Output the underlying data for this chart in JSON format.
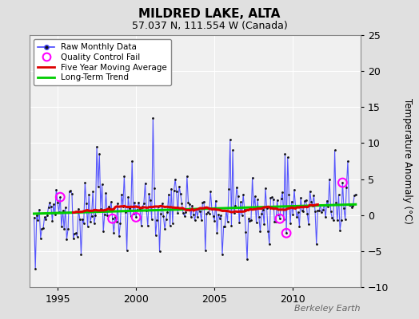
{
  "title": "MILDRED LAKE, ALTA",
  "subtitle": "57.037 N, 111.554 W (Canada)",
  "ylabel": "Temperature Anomaly (°C)",
  "watermark": "Berkeley Earth",
  "xlim": [
    1993.2,
    2014.3
  ],
  "ylim": [
    -10,
    25
  ],
  "yticks": [
    -10,
    -5,
    0,
    5,
    10,
    15,
    20,
    25
  ],
  "xticks": [
    1995,
    2000,
    2005,
    2010
  ],
  "bg_color": "#e0e0e0",
  "plot_bg_color": "#f0f0f0",
  "grid_color": "#ffffff",
  "line_color_raw": "#4444ff",
  "dot_color": "#111111",
  "moving_avg_color": "#dd0000",
  "trend_color": "#00cc00",
  "qc_fail_color": "#ff00ff",
  "legend_items": [
    "Raw Monthly Data",
    "Quality Control Fail",
    "Five Year Moving Average",
    "Long-Term Trend"
  ]
}
